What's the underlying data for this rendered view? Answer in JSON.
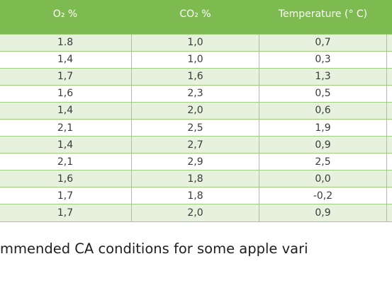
{
  "table": {
    "headers": [
      "O₂ %",
      "CO₂ %",
      "Temperature (° C)"
    ],
    "rows": [
      [
        "1.8",
        "1,0",
        "0,7"
      ],
      [
        "1,4",
        "1,0",
        "0,3"
      ],
      [
        "1,7",
        "1,6",
        "1,3"
      ],
      [
        "1,6",
        "2,3",
        "0,5"
      ],
      [
        "1,4",
        "2,0",
        "0,6"
      ],
      [
        "2,1",
        "2,5",
        "1,9"
      ],
      [
        "1,4",
        "2,7",
        "0,9"
      ],
      [
        "2,1",
        "2,9",
        "2,5"
      ],
      [
        "1,6",
        "1,8",
        "0,0"
      ],
      [
        "1,7",
        "1,8",
        "-0,2"
      ],
      [
        "1,7",
        "2,0",
        "0,9"
      ]
    ]
  },
  "caption": "mmended CA conditions for some apple vari",
  "colors": {
    "header_bg": "#7dba4f",
    "row_alt_bg": "#e6f1de",
    "border": "#9fcd7d"
  }
}
